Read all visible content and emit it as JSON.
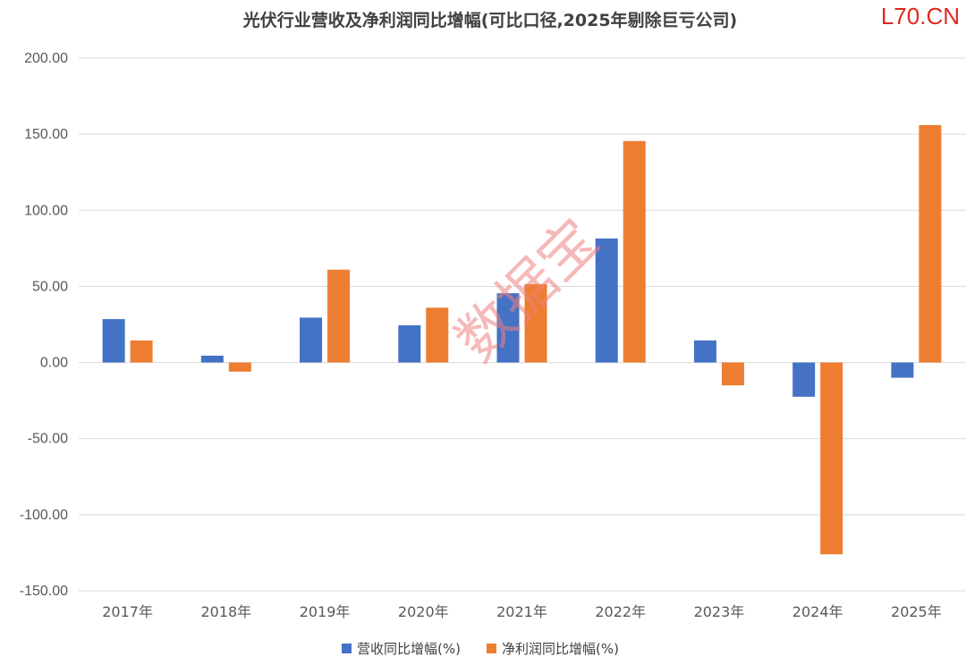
{
  "brand": "L70.CN",
  "watermark": "数据宝",
  "chart_data": {
    "type": "bar",
    "title": "光伏行业营收及净利润同比增幅(可比口径,2025年剔除巨亏公司)",
    "categories": [
      "2017年",
      "2018年",
      "2019年",
      "2020年",
      "2021年",
      "2022年",
      "2023年",
      "2024年",
      "2025年"
    ],
    "series": [
      {
        "name": "营收同比增幅(%)",
        "color": "#4472c4",
        "values": [
          28.5,
          4.5,
          29.5,
          24.5,
          45.5,
          81.5,
          14.5,
          -22.5,
          -10.0
        ]
      },
      {
        "name": "净利润同比增幅(%)",
        "color": "#ed7d31",
        "values": [
          14.5,
          -6.0,
          61.0,
          36.0,
          51.5,
          145.5,
          -15.0,
          -126.0,
          156.0
        ]
      }
    ],
    "y_ticks": [
      "200.00",
      "150.00",
      "100.00",
      "50.00",
      "0.00",
      "-50.00",
      "-100.00",
      "-150.00"
    ],
    "ylim": [
      -150,
      200
    ],
    "grid": true,
    "legend": "bottom"
  }
}
